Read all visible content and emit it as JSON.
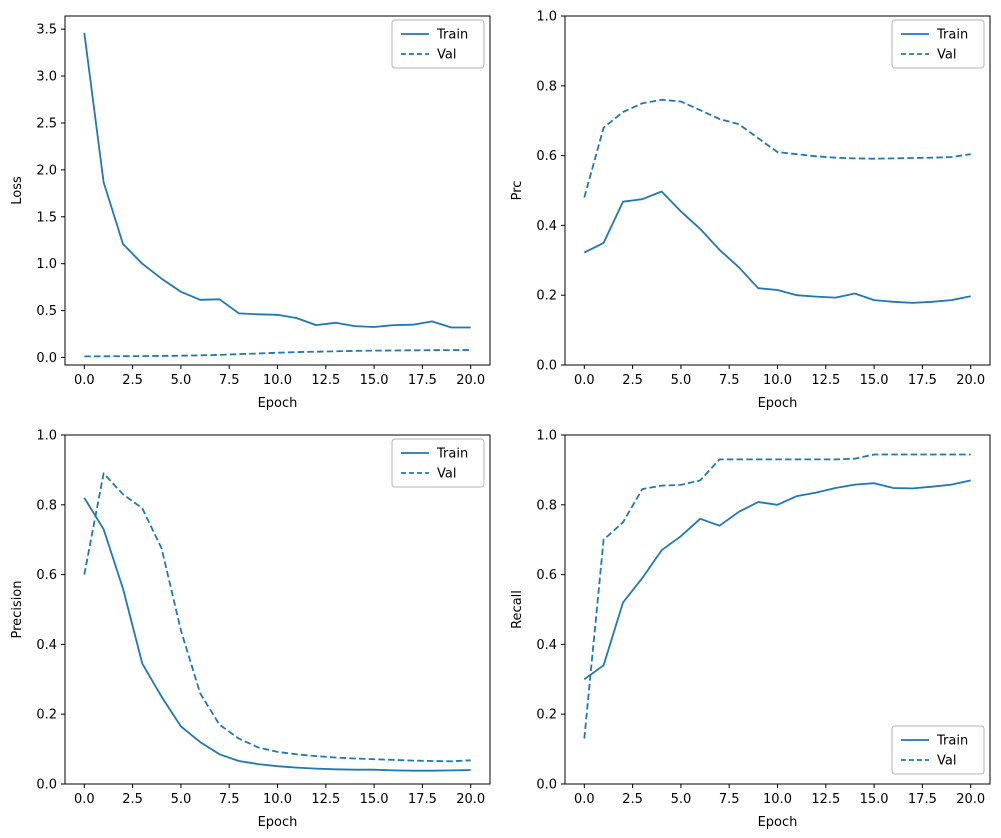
{
  "figure": {
    "background": "#ffffff",
    "line_color": "#1f77b4",
    "text_color": "#000000",
    "axis_color": "#000000",
    "legend_border_color": "#b3b3b3",
    "legend_fill": "#ffffff",
    "legend_labels": {
      "train": "Train",
      "val": "Val"
    }
  },
  "chart_data": [
    {
      "name": "loss-chart",
      "type": "line",
      "title": "",
      "xlabel": "Epoch",
      "ylabel": "Loss",
      "grid": false,
      "legend_position": "upper-right",
      "legend_entries": [
        "Train",
        "Val"
      ],
      "x": [
        0,
        1,
        2,
        3,
        4,
        5,
        6,
        7,
        8,
        9,
        10,
        11,
        12,
        13,
        14,
        15,
        16,
        17,
        18,
        19,
        20
      ],
      "series": [
        {
          "name": "Train",
          "style": "solid",
          "values": [
            3.46,
            1.87,
            1.21,
            1.0,
            0.84,
            0.7,
            0.615,
            0.62,
            0.47,
            0.46,
            0.455,
            0.42,
            0.345,
            0.37,
            0.335,
            0.325,
            0.345,
            0.35,
            0.385,
            0.32,
            0.32
          ]
        },
        {
          "name": "Val",
          "style": "dashed",
          "values": [
            0.012,
            0.013,
            0.014,
            0.015,
            0.017,
            0.019,
            0.023,
            0.028,
            0.036,
            0.043,
            0.051,
            0.057,
            0.062,
            0.066,
            0.07,
            0.073,
            0.075,
            0.077,
            0.078,
            0.079,
            0.08
          ]
        }
      ],
      "xlim": [
        -1,
        21
      ],
      "ylim": [
        -0.08,
        3.64
      ],
      "xticks": [
        0,
        2.5,
        5,
        7.5,
        10,
        12.5,
        15,
        17.5,
        20
      ],
      "xtick_labels": [
        "0.0",
        "2.5",
        "5.0",
        "7.5",
        "10.0",
        "12.5",
        "15.0",
        "17.5",
        "20.0"
      ],
      "yticks": [
        0,
        0.5,
        1.0,
        1.5,
        2.0,
        2.5,
        3.0,
        3.5
      ],
      "ytick_labels": [
        "0.0",
        "0.5",
        "1.0",
        "1.5",
        "2.0",
        "2.5",
        "3.0",
        "3.5"
      ]
    },
    {
      "name": "prc-chart",
      "type": "line",
      "title": "",
      "xlabel": "Epoch",
      "ylabel": "Prc",
      "grid": false,
      "legend_position": "upper-right",
      "legend_entries": [
        "Train",
        "Val"
      ],
      "x": [
        0,
        1,
        2,
        3,
        4,
        5,
        6,
        7,
        8,
        9,
        10,
        11,
        12,
        13,
        14,
        15,
        16,
        17,
        18,
        19,
        20
      ],
      "series": [
        {
          "name": "Train",
          "style": "solid",
          "values": [
            0.322,
            0.35,
            0.468,
            0.475,
            0.497,
            0.44,
            0.39,
            0.33,
            0.28,
            0.22,
            0.215,
            0.2,
            0.196,
            0.193,
            0.205,
            0.186,
            0.181,
            0.178,
            0.181,
            0.186,
            0.197
          ]
        },
        {
          "name": "Val",
          "style": "dashed",
          "values": [
            0.48,
            0.68,
            0.725,
            0.75,
            0.76,
            0.755,
            0.73,
            0.705,
            0.69,
            0.65,
            0.61,
            0.604,
            0.598,
            0.594,
            0.592,
            0.591,
            0.592,
            0.593,
            0.594,
            0.596,
            0.604
          ]
        }
      ],
      "xlim": [
        -1,
        21
      ],
      "ylim": [
        0,
        1
      ],
      "xticks": [
        0,
        2.5,
        5,
        7.5,
        10,
        12.5,
        15,
        17.5,
        20
      ],
      "xtick_labels": [
        "0.0",
        "2.5",
        "5.0",
        "7.5",
        "10.0",
        "12.5",
        "15.0",
        "17.5",
        "20.0"
      ],
      "yticks": [
        0,
        0.2,
        0.4,
        0.6,
        0.8,
        1.0
      ],
      "ytick_labels": [
        "0.0",
        "0.2",
        "0.4",
        "0.6",
        "0.8",
        "1.0"
      ]
    },
    {
      "name": "precision-chart",
      "type": "line",
      "title": "",
      "xlabel": "Epoch",
      "ylabel": "Precision",
      "grid": false,
      "legend_position": "upper-right",
      "legend_entries": [
        "Train",
        "Val"
      ],
      "x": [
        0,
        1,
        2,
        3,
        4,
        5,
        6,
        7,
        8,
        9,
        10,
        11,
        12,
        13,
        14,
        15,
        16,
        17,
        18,
        19,
        20
      ],
      "series": [
        {
          "name": "Train",
          "style": "solid",
          "values": [
            0.82,
            0.73,
            0.56,
            0.345,
            0.25,
            0.165,
            0.12,
            0.085,
            0.066,
            0.057,
            0.051,
            0.047,
            0.044,
            0.042,
            0.041,
            0.041,
            0.039,
            0.038,
            0.038,
            0.039,
            0.04
          ]
        },
        {
          "name": "Val",
          "style": "dashed",
          "values": [
            0.6,
            0.89,
            0.83,
            0.79,
            0.675,
            0.44,
            0.26,
            0.17,
            0.13,
            0.105,
            0.092,
            0.085,
            0.08,
            0.076,
            0.073,
            0.071,
            0.069,
            0.067,
            0.066,
            0.065,
            0.068
          ]
        }
      ],
      "xlim": [
        -1,
        21
      ],
      "ylim": [
        0,
        1
      ],
      "xticks": [
        0,
        2.5,
        5,
        7.5,
        10,
        12.5,
        15,
        17.5,
        20
      ],
      "xtick_labels": [
        "0.0",
        "2.5",
        "5.0",
        "7.5",
        "10.0",
        "12.5",
        "15.0",
        "17.5",
        "20.0"
      ],
      "yticks": [
        0,
        0.2,
        0.4,
        0.6,
        0.8,
        1.0
      ],
      "ytick_labels": [
        "0.0",
        "0.2",
        "0.4",
        "0.6",
        "0.8",
        "1.0"
      ]
    },
    {
      "name": "recall-chart",
      "type": "line",
      "title": "",
      "xlabel": "Epoch",
      "ylabel": "Recall",
      "grid": false,
      "legend_position": "lower-right",
      "legend_entries": [
        "Train",
        "Val"
      ],
      "x": [
        0,
        1,
        2,
        3,
        4,
        5,
        6,
        7,
        8,
        9,
        10,
        11,
        12,
        13,
        14,
        15,
        16,
        17,
        18,
        19,
        20
      ],
      "series": [
        {
          "name": "Train",
          "style": "solid",
          "values": [
            0.3,
            0.34,
            0.52,
            0.59,
            0.67,
            0.71,
            0.76,
            0.74,
            0.78,
            0.808,
            0.8,
            0.825,
            0.835,
            0.848,
            0.858,
            0.862,
            0.848,
            0.847,
            0.852,
            0.858,
            0.87
          ]
        },
        {
          "name": "Val",
          "style": "dashed",
          "values": [
            0.13,
            0.7,
            0.75,
            0.845,
            0.855,
            0.857,
            0.87,
            0.93,
            0.93,
            0.93,
            0.93,
            0.93,
            0.93,
            0.93,
            0.932,
            0.944,
            0.944,
            0.944,
            0.944,
            0.944,
            0.944
          ]
        }
      ],
      "xlim": [
        -1,
        21
      ],
      "ylim": [
        0,
        1
      ],
      "xticks": [
        0,
        2.5,
        5,
        7.5,
        10,
        12.5,
        15,
        17.5,
        20
      ],
      "xtick_labels": [
        "0.0",
        "2.5",
        "5.0",
        "7.5",
        "10.0",
        "12.5",
        "15.0",
        "17.5",
        "20.0"
      ],
      "yticks": [
        0,
        0.2,
        0.4,
        0.6,
        0.8,
        1.0
      ],
      "ytick_labels": [
        "0.0",
        "0.2",
        "0.4",
        "0.6",
        "0.8",
        "1.0"
      ]
    }
  ]
}
